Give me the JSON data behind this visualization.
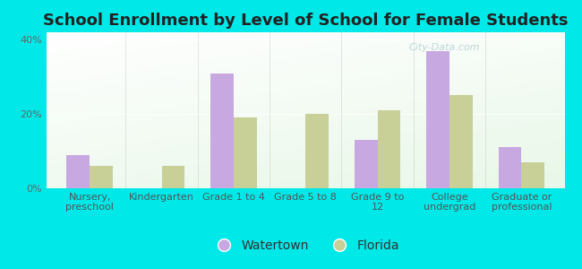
{
  "title": "School Enrollment by Level of School for Female Students",
  "categories": [
    "Nursery,\npreschool",
    "Kindergarten",
    "Grade 1 to 4",
    "Grade 5 to 8",
    "Grade 9 to\n12",
    "College\nundergrad",
    "Graduate or\nprofessional"
  ],
  "watertown": [
    9,
    0,
    31,
    0,
    13,
    37,
    11
  ],
  "florida": [
    6,
    6,
    19,
    20,
    21,
    25,
    7
  ],
  "watertown_color": "#c8a8e0",
  "florida_color": "#c8d098",
  "background_color": "#00e8e8",
  "title_fontsize": 13,
  "tick_fontsize": 8,
  "legend_fontsize": 10,
  "ylim": [
    0,
    42
  ],
  "yticks": [
    0,
    20,
    40
  ],
  "ytick_labels": [
    "0%",
    "20%",
    "40%"
  ],
  "watermark": "City-Data.com",
  "bar_width": 0.32
}
